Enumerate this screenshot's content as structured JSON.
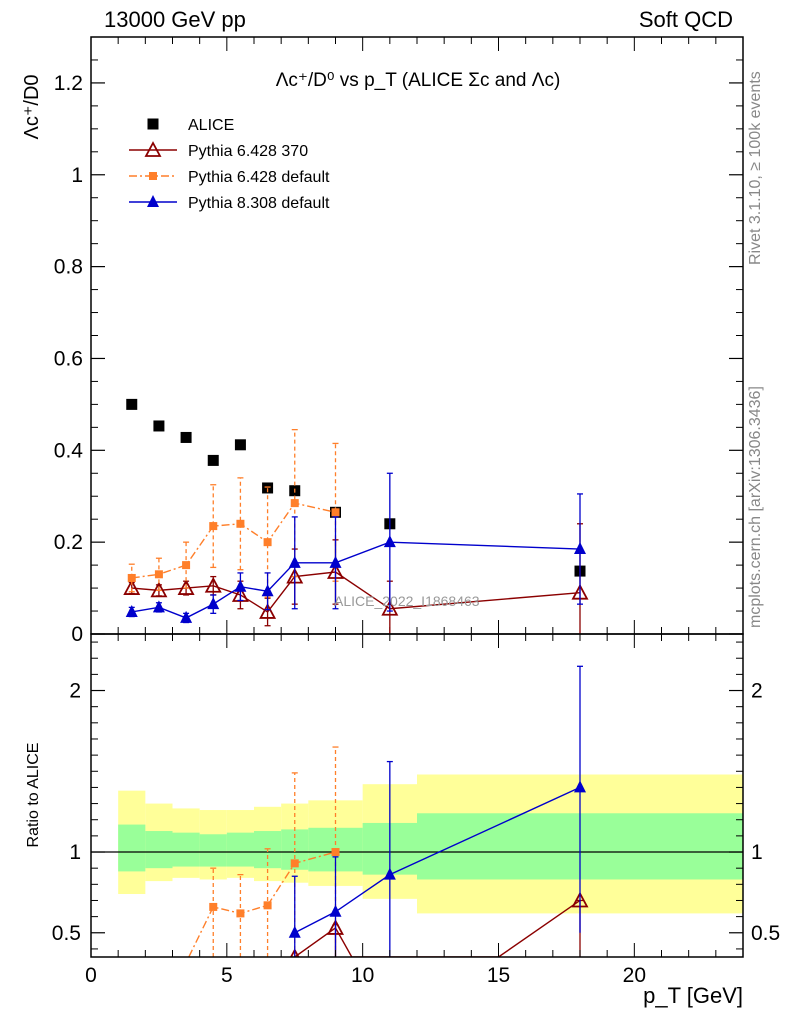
{
  "header": {
    "left": "13000 GeV pp",
    "right": "Soft QCD"
  },
  "side_text": {
    "rivet": "Rivet 3.1.10, ≥ 100k events",
    "mcplots": "mcplots.cern.ch [arXiv:1306.3436]"
  },
  "watermark": "ALICE_2022_I1868463",
  "colors": {
    "data": "#000000",
    "pythia6_370": "#8b0000",
    "pythia6_default": "#ff7f2a",
    "pythia8_default": "#0000cc",
    "band_inner": "#99ff99",
    "band_outer": "#ffff99"
  },
  "chart_data": [
    {
      "type": "scatter",
      "title": "Λc⁺/D⁰ vs p_T (ALICE Σc and Λc)",
      "ylabel": "Λc⁺/D0",
      "xlim": [
        0,
        24
      ],
      "ylim": [
        0,
        1.3
      ],
      "yticks": [
        "0",
        "0.2",
        "0.4",
        "0.6",
        "0.8",
        "1",
        "1.2"
      ],
      "legend_position": "top-left",
      "series": [
        {
          "name": "ALICE",
          "marker": "square",
          "x": [
            1.5,
            2.5,
            3.5,
            4.5,
            5.5,
            6.5,
            7.5,
            9,
            11,
            18
          ],
          "y": [
            0.5,
            0.453,
            0.428,
            0.378,
            0.412,
            0.318,
            0.312,
            0.265,
            0.24,
            0.137
          ]
        },
        {
          "name": "Pythia 6.428 370",
          "marker": "open-triangle",
          "x": [
            1.5,
            2.5,
            3.5,
            4.5,
            5.5,
            6.5,
            7.5,
            9,
            11,
            18
          ],
          "y": [
            0.1,
            0.095,
            0.1,
            0.105,
            0.085,
            0.048,
            0.125,
            0.135,
            0.055,
            0.09
          ],
          "err": [
            0.012,
            0.012,
            0.015,
            0.02,
            0.03,
            0.03,
            0.06,
            0.07,
            0.06,
            0.15
          ]
        },
        {
          "name": "Pythia 6.428 default",
          "marker": "square-small",
          "x": [
            1.5,
            2.5,
            3.5,
            4.5,
            5.5,
            6.5,
            7.5,
            9
          ],
          "y": [
            0.122,
            0.13,
            0.15,
            0.235,
            0.24,
            0.2,
            0.285,
            0.265
          ],
          "err": [
            0.03,
            0.035,
            0.05,
            0.09,
            0.1,
            0.12,
            0.16,
            0.15
          ]
        },
        {
          "name": "Pythia 8.308 default",
          "marker": "triangle",
          "x": [
            1.5,
            2.5,
            3.5,
            4.5,
            5.5,
            6.5,
            7.5,
            9,
            11,
            18
          ],
          "y": [
            0.048,
            0.058,
            0.035,
            0.065,
            0.103,
            0.093,
            0.155,
            0.155,
            0.2,
            0.185
          ],
          "err": [
            0.01,
            0.01,
            0.01,
            0.02,
            0.03,
            0.04,
            0.1,
            0.1,
            0.15,
            0.12
          ]
        }
      ]
    },
    {
      "type": "line",
      "ylabel": "Ratio to ALICE",
      "xlabel": "p_T [GeV]",
      "xlim": [
        0,
        24
      ],
      "ylim": [
        0.35,
        2.35
      ],
      "xticks": [
        "0",
        "5",
        "10",
        "15",
        "20"
      ],
      "yticks": [
        "0.5",
        "1",
        "2"
      ],
      "reference_line": 1,
      "bands": [
        {
          "x0": 1,
          "x1": 2,
          "inner": [
            0.88,
            1.17
          ],
          "outer": [
            0.74,
            1.38
          ]
        },
        {
          "x0": 2,
          "x1": 3,
          "inner": [
            0.9,
            1.13
          ],
          "outer": [
            0.82,
            1.3
          ]
        },
        {
          "x0": 3,
          "x1": 4,
          "inner": [
            0.91,
            1.12
          ],
          "outer": [
            0.84,
            1.27
          ]
        },
        {
          "x0": 4,
          "x1": 5,
          "inner": [
            0.91,
            1.11
          ],
          "outer": [
            0.83,
            1.26
          ]
        },
        {
          "x0": 5,
          "x1": 6,
          "inner": [
            0.91,
            1.12
          ],
          "outer": [
            0.84,
            1.26
          ]
        },
        {
          "x0": 6,
          "x1": 7,
          "inner": [
            0.9,
            1.13
          ],
          "outer": [
            0.82,
            1.28
          ]
        },
        {
          "x0": 7,
          "x1": 8,
          "inner": [
            0.89,
            1.14
          ],
          "outer": [
            0.81,
            1.3
          ]
        },
        {
          "x0": 8,
          "x1": 10,
          "inner": [
            0.88,
            1.15
          ],
          "outer": [
            0.79,
            1.32
          ]
        },
        {
          "x0": 10,
          "x1": 12,
          "inner": [
            0.86,
            1.18
          ],
          "outer": [
            0.71,
            1.42
          ]
        },
        {
          "x0": 12,
          "x1": 24,
          "inner": [
            0.83,
            1.24
          ],
          "outer": [
            0.62,
            1.48
          ]
        }
      ],
      "series": [
        {
          "name": "Pythia 6.428 370",
          "marker": "open-triangle",
          "x": [
            7.5,
            9,
            9.6,
            15,
            18
          ],
          "y": [
            0.35,
            0.53,
            0.35,
            0.35,
            0.7
          ],
          "markers_at": [
            7.5,
            9,
            18
          ],
          "err": {
            "7.5": [
              0.35,
              0.35
            ],
            "9": [
              0.35,
              0.55
            ],
            "18": [
              0.35,
              0.7
            ]
          }
        },
        {
          "name": "Pythia 6.428 default",
          "marker": "square-small",
          "x": [
            3.6,
            4.5,
            5.5,
            6.5,
            7.5,
            9
          ],
          "y": [
            0.35,
            0.66,
            0.62,
            0.67,
            0.93,
            1.0
          ],
          "markers_at": [
            4.5,
            5.5,
            6.5,
            7.5,
            9
          ],
          "err": {
            "4.5": [
              0.35,
              0.9
            ],
            "5.5": [
              0.35,
              0.86
            ],
            "6.5": [
              0.35,
              1.02
            ],
            "7.5": [
              0.35,
              1.49
            ],
            "9": [
              0.35,
              1.65
            ]
          }
        },
        {
          "name": "Pythia 8.308 default",
          "marker": "triangle",
          "x": [
            7.5,
            9,
            11,
            18
          ],
          "y": [
            0.5,
            0.63,
            0.86,
            1.4
          ],
          "markers_at": [
            7.5,
            9,
            11,
            18
          ],
          "err": {
            "7.5": [
              0.35,
              0.85
            ],
            "9": [
              0.35,
              0.97
            ],
            "11": [
              0.35,
              1.56
            ],
            "18": [
              0.5,
              2.15
            ]
          }
        }
      ]
    }
  ]
}
